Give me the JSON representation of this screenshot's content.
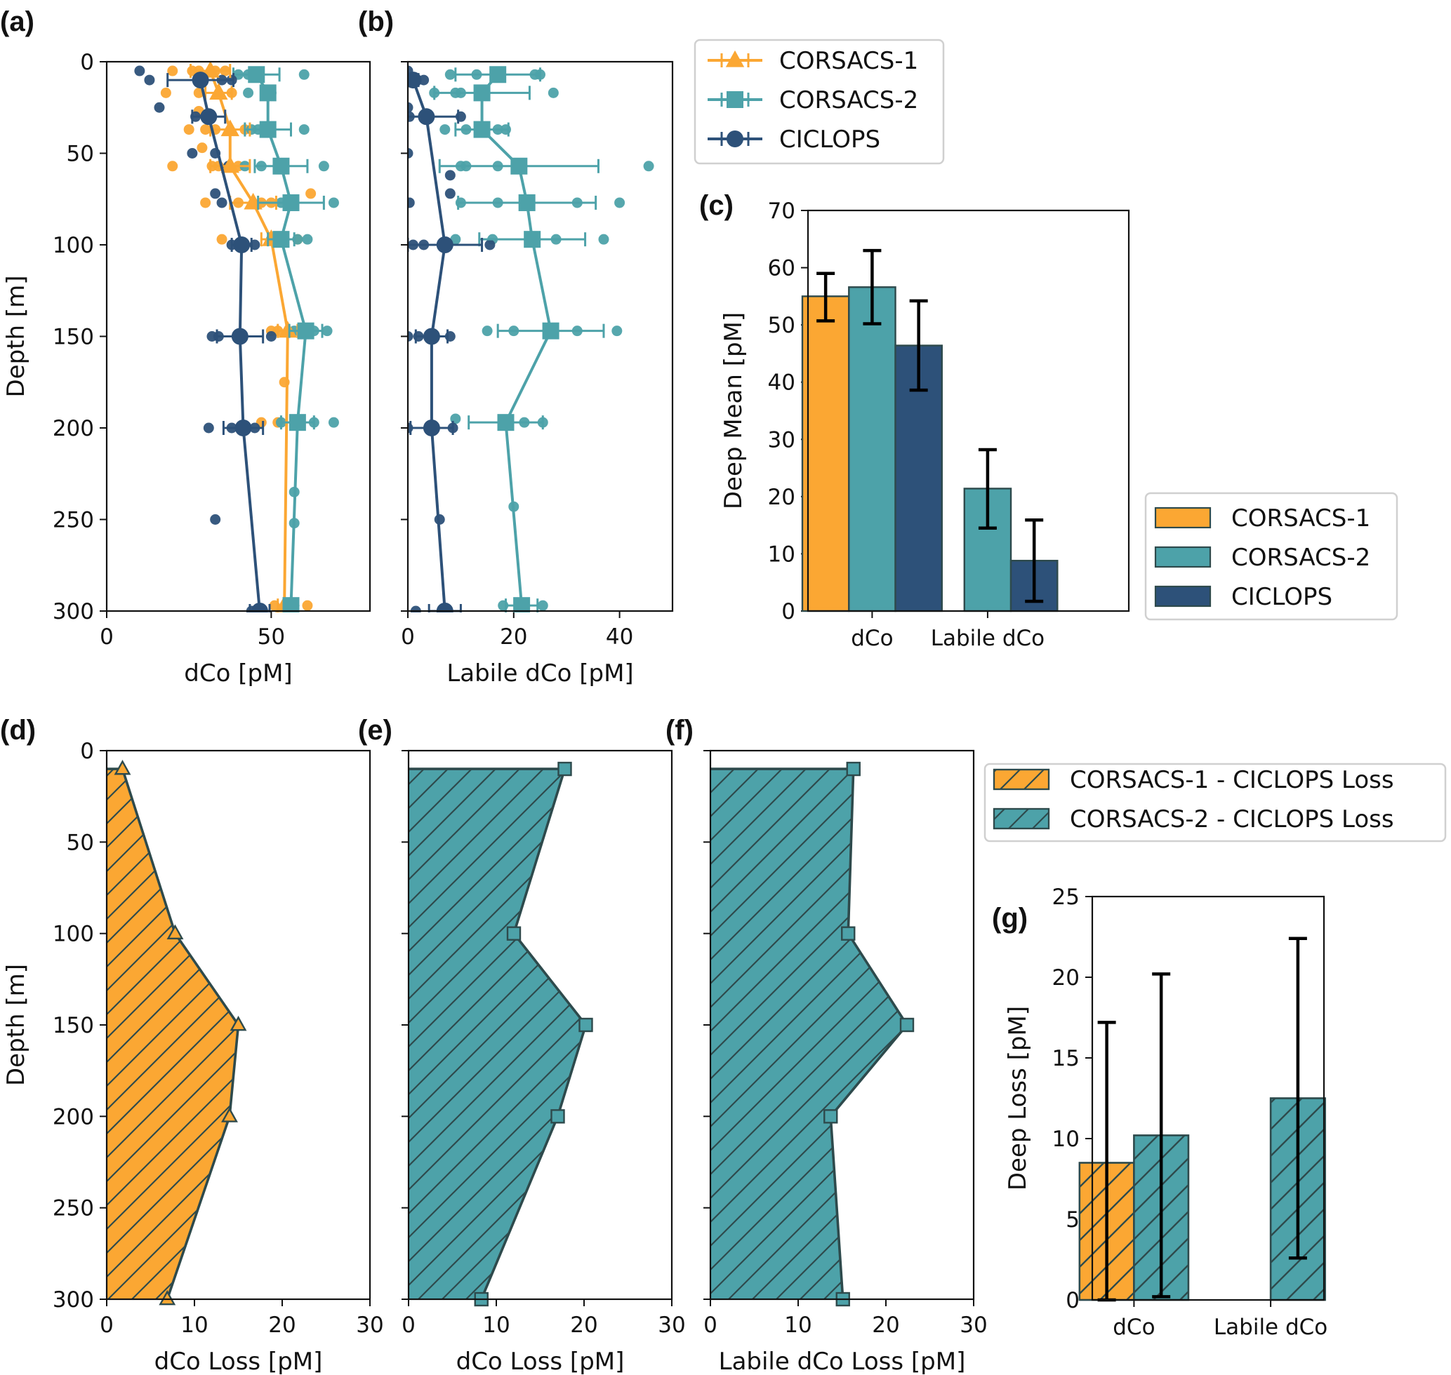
{
  "colors": {
    "corsacs1": "#FBA733",
    "corsacs2": "#4DA2A9",
    "ciclops": "#2D5179",
    "edge": "#2E4A4C",
    "axis": "#111111",
    "legend_border": "#d0d0d0"
  },
  "legend_top": {
    "entries": [
      {
        "label": "CORSACS-1",
        "series": "corsacs1",
        "marker": "triangle"
      },
      {
        "label": "CORSACS-2",
        "series": "corsacs2",
        "marker": "square"
      },
      {
        "label": "CICLOPS",
        "series": "ciclops",
        "marker": "circle"
      }
    ]
  },
  "legend_c": {
    "entries": [
      {
        "label": "CORSACS-1",
        "series": "corsacs1"
      },
      {
        "label": "CORSACS-2",
        "series": "corsacs2"
      },
      {
        "label": "CICLOPS",
        "series": "ciclops"
      }
    ]
  },
  "legend_loss": {
    "entries": [
      {
        "label": "CORSACS-1 - CICLOPS Loss",
        "series": "corsacs1"
      },
      {
        "label": "CORSACS-2 - CICLOPS Loss",
        "series": "corsacs2"
      }
    ]
  },
  "chart_data": [
    {
      "id": "a",
      "panel_label": "(a)",
      "type": "line",
      "orientation": "depth-profile",
      "xlabel": "dCo [pM]",
      "ylabel": "Depth [m]",
      "xlim": [
        0,
        80
      ],
      "ylim": [
        300,
        0
      ],
      "xticks": [
        0,
        50
      ],
      "yticks": [
        0,
        50,
        100,
        150,
        200,
        250,
        300
      ],
      "show_ytick_labels": true,
      "series": [
        {
          "name": "CORSACS-1",
          "key": "corsacs1",
          "marker": "triangle",
          "depth": [
            5,
            17,
            37,
            57,
            77,
            97,
            147,
            297
          ],
          "mean": [
            31.5,
            34,
            37.5,
            37.5,
            44.5,
            50,
            55,
            54
          ],
          "err": [
            6,
            4,
            6,
            6,
            7,
            3,
            3,
            2
          ],
          "raw": [
            [
              5,
              20
            ],
            [
              5,
              26
            ],
            [
              5,
              28
            ],
            [
              5,
              33
            ],
            [
              5,
              36
            ],
            [
              17,
              18
            ],
            [
              17,
              28
            ],
            [
              17,
              38
            ],
            [
              27,
              28
            ],
            [
              37,
              25
            ],
            [
              37,
              30
            ],
            [
              37,
              33
            ],
            [
              37,
              42
            ],
            [
              57,
              20
            ],
            [
              57,
              32
            ],
            [
              57,
              34
            ],
            [
              57,
              40
            ],
            [
              47,
              29
            ],
            [
              72,
              62
            ],
            [
              77,
              30
            ],
            [
              77,
              40
            ],
            [
              77,
              47
            ],
            [
              77,
              50
            ],
            [
              97,
              35
            ],
            [
              97,
              53
            ],
            [
              97,
              58
            ],
            [
              147,
              50
            ],
            [
              147,
              52
            ],
            [
              175,
              54
            ],
            [
              197,
              47
            ],
            [
              197,
              52
            ],
            [
              297,
              51
            ],
            [
              297,
              61
            ]
          ]
        },
        {
          "name": "CORSACS-2",
          "key": "corsacs2",
          "marker": "square",
          "depth": [
            7,
            17,
            37,
            57,
            77,
            97,
            147,
            197,
            297
          ],
          "mean": [
            45.5,
            49,
            49,
            53,
            56,
            53,
            60.5,
            58,
            56
          ],
          "err": [
            7,
            2,
            7,
            8,
            10,
            4,
            5,
            5,
            2
          ],
          "raw": [
            [
              7,
              40
            ],
            [
              7,
              43
            ],
            [
              7,
              60
            ],
            [
              17,
              43
            ],
            [
              17,
              50
            ],
            [
              37,
              44
            ],
            [
              37,
              46
            ],
            [
              37,
              60
            ],
            [
              57,
              42
            ],
            [
              57,
              47
            ],
            [
              57,
              66
            ],
            [
              77,
              53
            ],
            [
              77,
              69
            ],
            [
              97,
              50
            ],
            [
              97,
              58
            ],
            [
              97,
              61
            ],
            [
              147,
              57
            ],
            [
              147,
              63
            ],
            [
              147,
              67
            ],
            [
              197,
              53
            ],
            [
              197,
              63
            ],
            [
              197,
              69
            ],
            [
              235,
              57
            ],
            [
              252,
              57
            ],
            [
              297,
              55
            ],
            [
              297,
              57
            ]
          ]
        },
        {
          "name": "CICLOPS",
          "key": "ciclops",
          "marker": "circle",
          "depth": [
            10,
            30,
            100,
            150,
            200,
            300
          ],
          "mean": [
            28.5,
            31,
            41,
            40.5,
            41.5,
            46.5
          ],
          "err": [
            10,
            5,
            3,
            7,
            6,
            3
          ],
          "raw": [
            [
              5,
              10
            ],
            [
              10,
              13
            ],
            [
              10,
              35
            ],
            [
              10,
              38
            ],
            [
              25,
              16
            ],
            [
              30,
              27
            ],
            [
              50,
              26
            ],
            [
              50,
              33
            ],
            [
              57,
              37
            ],
            [
              72,
              33
            ],
            [
              77,
              35
            ],
            [
              100,
              38
            ],
            [
              100,
              45
            ],
            [
              150,
              32
            ],
            [
              150,
              34
            ],
            [
              150,
              50
            ],
            [
              200,
              31
            ],
            [
              200,
              38
            ],
            [
              200,
              45
            ],
            [
              250,
              33
            ],
            [
              300,
              44
            ]
          ]
        }
      ]
    },
    {
      "id": "b",
      "panel_label": "(b)",
      "type": "line",
      "orientation": "depth-profile",
      "xlabel": "Labile dCo [pM]",
      "ylabel": "",
      "xlim": [
        0,
        50
      ],
      "ylim": [
        300,
        0
      ],
      "xticks": [
        0,
        20,
        40
      ],
      "yticks": [
        0,
        50,
        100,
        150,
        200,
        250,
        300
      ],
      "show_ytick_labels": false,
      "series": [
        {
          "name": "CORSACS-2",
          "key": "corsacs2",
          "marker": "square",
          "depth": [
            7,
            17,
            37,
            57,
            77,
            97,
            147,
            197,
            297
          ],
          "mean": [
            17,
            14,
            14,
            21,
            22.5,
            23.5,
            27,
            18.5,
            21.5
          ],
          "err": [
            8,
            9,
            5,
            15,
            13,
            10,
            10,
            7,
            3
          ],
          "raw": [
            [
              7,
              8
            ],
            [
              7,
              13
            ],
            [
              7,
              24
            ],
            [
              7,
              25
            ],
            [
              17,
              5
            ],
            [
              17,
              9
            ],
            [
              17,
              10
            ],
            [
              17,
              27.5
            ],
            [
              37,
              7
            ],
            [
              37,
              11
            ],
            [
              37,
              17
            ],
            [
              37,
              18.5
            ],
            [
              57,
              10
            ],
            [
              57,
              11
            ],
            [
              57,
              17
            ],
            [
              57,
              45.5
            ],
            [
              77,
              10
            ],
            [
              77,
              17
            ],
            [
              77,
              32
            ],
            [
              77,
              40
            ],
            [
              97,
              9
            ],
            [
              97,
              16
            ],
            [
              97,
              28
            ],
            [
              97,
              37
            ],
            [
              147,
              15
            ],
            [
              147,
              20
            ],
            [
              147,
              32
            ],
            [
              147,
              39.5
            ],
            [
              195,
              9
            ],
            [
              197,
              22
            ],
            [
              197,
              25.5
            ],
            [
              243,
              20
            ],
            [
              297,
              18
            ],
            [
              297,
              25.5
            ]
          ]
        },
        {
          "name": "CICLOPS",
          "key": "ciclops",
          "marker": "circle",
          "depth": [
            10,
            30,
            100,
            150,
            200,
            300
          ],
          "mean": [
            1,
            3.5,
            7,
            4.5,
            4.5,
            7
          ],
          "err": [
            1,
            6,
            7,
            3,
            4,
            3
          ],
          "raw": [
            [
              5,
              0
            ],
            [
              10,
              3
            ],
            [
              25,
              0
            ],
            [
              30,
              0.3
            ],
            [
              30,
              10
            ],
            [
              50,
              0
            ],
            [
              62,
              8
            ],
            [
              72,
              8
            ],
            [
              77,
              0.3
            ],
            [
              100,
              1
            ],
            [
              100,
              3
            ],
            [
              100,
              15.5
            ],
            [
              150,
              0
            ],
            [
              150,
              2
            ],
            [
              150,
              8
            ],
            [
              200,
              0
            ],
            [
              200,
              8.5
            ],
            [
              250,
              6
            ],
            [
              300,
              1.5
            ]
          ]
        }
      ]
    },
    {
      "id": "c",
      "panel_label": "(c)",
      "type": "bar",
      "categories": [
        "dCo",
        "Labile dCo"
      ],
      "ylabel": "Deep Mean [pM]",
      "xlabel": "",
      "ylim": [
        0,
        70
      ],
      "yticks": [
        0,
        10,
        20,
        30,
        40,
        50,
        60,
        70
      ],
      "series": [
        {
          "name": "CORSACS-1",
          "key": "corsacs1",
          "values": [
            55.0,
            null
          ],
          "err_low": [
            50.7,
            null
          ],
          "err_high": [
            59.0,
            null
          ]
        },
        {
          "name": "CORSACS-2",
          "key": "corsacs2",
          "values": [
            56.6,
            21.4
          ],
          "err_low": [
            50.2,
            14.5
          ],
          "err_high": [
            63.0,
            28.2
          ]
        },
        {
          "name": "CICLOPS",
          "key": "ciclops",
          "values": [
            46.4,
            8.8
          ],
          "err_low": [
            38.6,
            1.7
          ],
          "err_high": [
            54.2,
            15.9
          ]
        }
      ],
      "legend": "lower-right-outside"
    },
    {
      "id": "d",
      "panel_label": "(d)",
      "type": "area",
      "orientation": "depth-profile",
      "xlabel": "dCo Loss [pM]",
      "ylabel": "Depth [m]",
      "xlim": [
        0,
        30
      ],
      "ylim": [
        300,
        0
      ],
      "xticks": [
        0,
        10,
        20,
        30
      ],
      "yticks": [
        0,
        50,
        100,
        150,
        200,
        250,
        300
      ],
      "show_ytick_labels": true,
      "series": [
        {
          "name": "CORSACS-1 - CICLOPS Loss",
          "key": "corsacs1",
          "marker": "triangle",
          "depth": [
            10,
            100,
            150,
            200,
            300
          ],
          "values": [
            1.8,
            7.8,
            15.0,
            14.0,
            6.9
          ]
        }
      ]
    },
    {
      "id": "e",
      "panel_label": "(e)",
      "type": "area",
      "orientation": "depth-profile",
      "xlabel": "dCo Loss [pM]",
      "ylabel": "",
      "xlim": [
        0,
        30
      ],
      "ylim": [
        300,
        0
      ],
      "xticks": [
        0,
        10,
        20,
        30
      ],
      "yticks": [
        0,
        50,
        100,
        150,
        200,
        250,
        300
      ],
      "show_ytick_labels": false,
      "series": [
        {
          "name": "CORSACS-2 - CICLOPS Loss",
          "key": "corsacs2",
          "marker": "square",
          "depth": [
            10,
            100,
            150,
            200,
            300
          ],
          "values": [
            17.8,
            12.0,
            20.2,
            17.0,
            8.3
          ]
        }
      ]
    },
    {
      "id": "f",
      "panel_label": "(f)",
      "type": "area",
      "orientation": "depth-profile",
      "xlabel": "Labile dCo Loss [pM]",
      "ylabel": "",
      "xlim": [
        0,
        30
      ],
      "ylim": [
        300,
        0
      ],
      "xticks": [
        0,
        10,
        20,
        30
      ],
      "yticks": [
        0,
        50,
        100,
        150,
        200,
        250,
        300
      ],
      "show_ytick_labels": false,
      "series": [
        {
          "name": "CORSACS-2 - CICLOPS Loss",
          "key": "corsacs2",
          "marker": "square",
          "depth": [
            10,
            100,
            150,
            200,
            300
          ],
          "values": [
            16.3,
            15.7,
            22.4,
            13.7,
            15.1
          ]
        }
      ]
    },
    {
      "id": "g",
      "panel_label": "(g)",
      "type": "bar",
      "categories": [
        "dCo",
        "Labile dCo"
      ],
      "ylabel": "Deep Loss [pM]",
      "xlabel": "",
      "ylim": [
        0,
        25
      ],
      "yticks": [
        0,
        5,
        10,
        15,
        20,
        25
      ],
      "hatched": true,
      "series": [
        {
          "name": "CORSACS-1 - CICLOPS Loss",
          "key": "corsacs1",
          "values": [
            8.5,
            null
          ],
          "err_low": [
            0,
            null
          ],
          "err_high": [
            17.2,
            null
          ]
        },
        {
          "name": "CORSACS-2 - CICLOPS Loss",
          "key": "corsacs2",
          "values": [
            10.2,
            12.5
          ],
          "err_low": [
            0.2,
            2.6
          ],
          "err_high": [
            20.2,
            22.4
          ]
        }
      ]
    }
  ]
}
